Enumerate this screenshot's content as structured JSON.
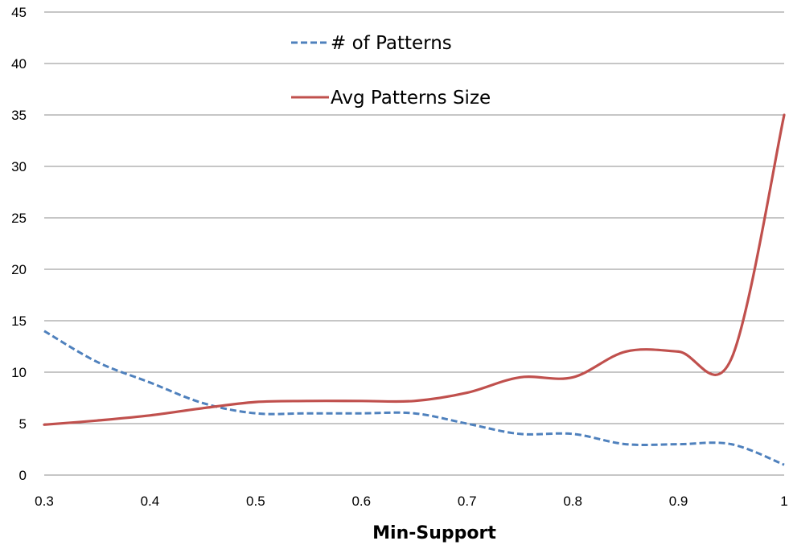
{
  "chart_data": {
    "type": "line",
    "xlabel": "Min-Support",
    "ylabel": "",
    "xlim": [
      0.3,
      1
    ],
    "ylim": [
      0,
      45
    ],
    "x_ticks": [
      "0.3",
      "0.4",
      "0.5",
      "0.6",
      "0.7",
      "0.8",
      "0.9",
      "1"
    ],
    "y_ticks": [
      "0",
      "5",
      "10",
      "15",
      "20",
      "25",
      "30",
      "35",
      "40",
      "45"
    ],
    "grid": "horizontal",
    "legend_position": "top-center",
    "series": [
      {
        "name": "# of Patterns",
        "style": "dashed",
        "color": "#4F81BD",
        "x": [
          0.3,
          0.35,
          0.4,
          0.45,
          0.5,
          0.55,
          0.6,
          0.65,
          0.7,
          0.75,
          0.8,
          0.85,
          0.9,
          0.95,
          1
        ],
        "y": [
          14,
          11,
          9,
          7,
          6,
          6,
          6,
          6,
          5,
          4,
          4,
          3,
          3,
          3,
          1
        ]
      },
      {
        "name": "Avg Patterns Size",
        "style": "solid",
        "color": "#C0504D",
        "x": [
          0.3,
          0.35,
          0.4,
          0.45,
          0.5,
          0.55,
          0.6,
          0.65,
          0.7,
          0.75,
          0.8,
          0.85,
          0.9,
          0.95,
          1
        ],
        "y": [
          4.9,
          5.3,
          5.8,
          6.5,
          7.1,
          7.2,
          7.2,
          7.2,
          8.0,
          9.5,
          9.5,
          12.0,
          12.0,
          11.3,
          35
        ]
      }
    ]
  }
}
